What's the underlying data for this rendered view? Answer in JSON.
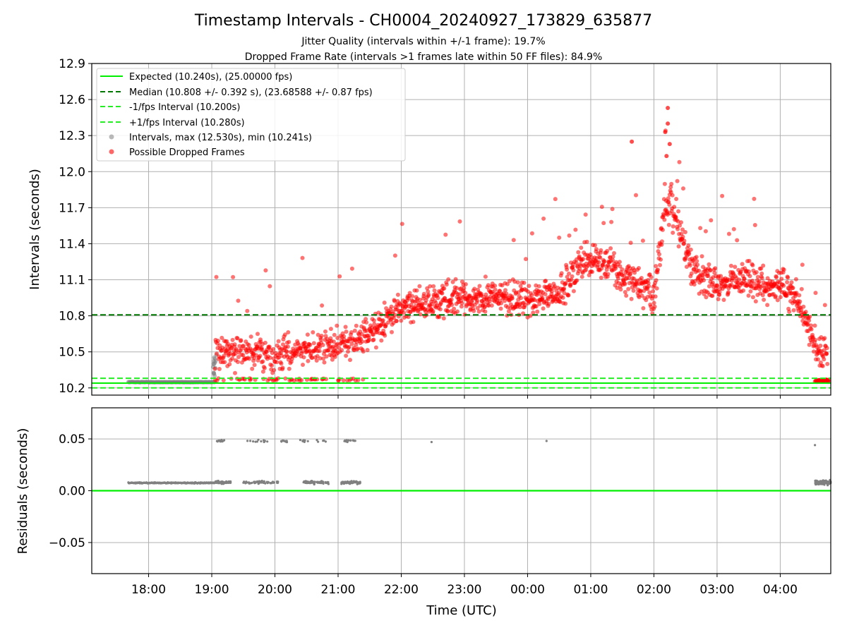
{
  "title": "Timestamp Intervals - CH0004_20240927_173829_635877",
  "subtitle1": "Jitter Quality (intervals within +/-1 frame): 19.7%",
  "subtitle2": "Dropped Frame Rate (intervals >1 frames late within 50 FF files): 84.9%",
  "colors": {
    "expected": "#00ee00",
    "median": "#007700",
    "fps_band": "#22ee22",
    "intervals": "#808080",
    "dropped": "#ff0000"
  },
  "chart_data": [
    {
      "type": "scatter",
      "panel": "intervals",
      "ylabel": "Intervals (seconds)",
      "ylim": [
        10.14,
        12.9
      ],
      "yticks": [
        10.2,
        10.5,
        10.8,
        11.1,
        11.4,
        11.7,
        12.0,
        12.3,
        12.6,
        12.9
      ],
      "ytick_labels": [
        "10.2",
        "10.5",
        "10.8",
        "11.1",
        "11.4",
        "11.7",
        "12.0",
        "12.3",
        "12.6",
        "12.9"
      ],
      "xlim_hours": [
        17.1,
        28.8
      ],
      "grid": true,
      "legend_position": "upper-left",
      "reference_lines": [
        {
          "name": "Expected (10.240s), (25.00000 fps)",
          "y": 10.24,
          "style": "solid",
          "color": "#00ee00"
        },
        {
          "name": "Median (10.808 +/- 0.392 s), (23.68588 +/- 0.87 fps)",
          "y": 10.808,
          "style": "dashed",
          "color": "#007700"
        },
        {
          "name": "-1/fps Interval (10.200s)",
          "y": 10.2,
          "style": "dashed",
          "color": "#22ee22"
        },
        {
          "name": "+1/fps Interval (10.280s)",
          "y": 10.28,
          "style": "dashed",
          "color": "#22ee22"
        }
      ],
      "series": [
        {
          "name": "Intervals, max (12.530s), min (10.241s)",
          "marker": "circle",
          "color": "#808080",
          "max": 12.53,
          "min": 10.241
        },
        {
          "name": "Possible Dropped Frames",
          "marker": "circle",
          "color": "#ff0000"
        }
      ],
      "trend_profile": {
        "x_hours": [
          19.05,
          19.5,
          20.0,
          20.5,
          21.0,
          21.5,
          22.0,
          22.5,
          23.0,
          23.5,
          24.0,
          24.5,
          24.9,
          25.2,
          25.6,
          26.0,
          26.2,
          26.4,
          26.6,
          27.0,
          27.5,
          28.0,
          28.3,
          28.6
        ],
        "y_median": [
          10.5,
          10.5,
          10.45,
          10.55,
          10.55,
          10.65,
          10.85,
          10.9,
          10.95,
          10.95,
          10.95,
          11.0,
          11.25,
          11.25,
          11.1,
          11.0,
          11.8,
          11.5,
          11.2,
          11.05,
          11.1,
          11.05,
          10.9,
          10.5
        ]
      }
    },
    {
      "type": "scatter",
      "panel": "residuals",
      "xlabel": "Time (UTC)",
      "ylabel": "Residuals (seconds)",
      "ylim": [
        -0.08,
        0.08
      ],
      "yticks": [
        -0.05,
        0.0,
        0.05
      ],
      "ytick_labels": [
        "−0.05",
        "0.00",
        "0.05"
      ],
      "xlim_hours": [
        17.1,
        28.8
      ],
      "xticks_hours": [
        18,
        19,
        20,
        21,
        22,
        23,
        24,
        25,
        26,
        27,
        28
      ],
      "xtick_labels": [
        "18:00",
        "19:00",
        "20:00",
        "21:00",
        "22:00",
        "23:00",
        "00:00",
        "01:00",
        "02:00",
        "03:00",
        "04:00"
      ],
      "grid": true,
      "reference_lines": [
        {
          "y": 0.0,
          "style": "solid",
          "color": "#00ee00"
        }
      ],
      "series": [
        {
          "name": "residuals",
          "color": "#808080",
          "clusters": [
            {
              "x_range": [
                17.68,
                19.05
              ],
              "y": 0.0075
            },
            {
              "x_range": [
                19.05,
                21.35
              ],
              "y": 0.008
            },
            {
              "x_range": [
                19.05,
                21.35
              ],
              "y": 0.048
            },
            {
              "x_range": [
                28.55,
                28.8
              ],
              "y": 0.008
            }
          ],
          "isolated": [
            [
              22.48,
              0.047
            ],
            [
              24.3,
              0.048
            ],
            [
              28.55,
              0.044
            ]
          ]
        }
      ]
    }
  ]
}
